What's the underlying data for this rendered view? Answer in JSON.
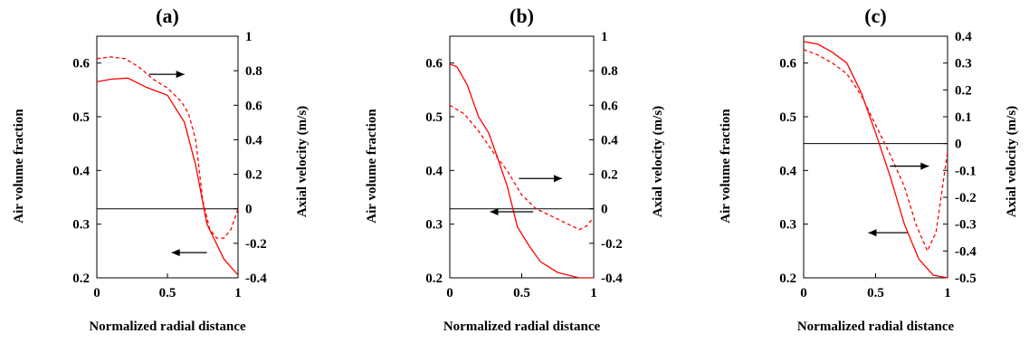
{
  "chart_data": [
    {
      "type": "line",
      "title": "(a)",
      "xlabel": "Normalized radial distance",
      "ylabel_left": "Air volume fraction",
      "ylabel_right": "Axial velocity (m/s)",
      "xlim": [
        0,
        1
      ],
      "ylim_left": [
        0.2,
        0.65
      ],
      "ylim_right": [
        -0.4,
        1
      ],
      "x_ticks": [
        "0",
        "0.5",
        "1"
      ],
      "x_tick_values": [
        0,
        0.5,
        1
      ],
      "y_left_ticks": [
        "0.2",
        "0.3",
        "0.4",
        "0.5",
        "0.6"
      ],
      "y_left_tick_values": [
        0.2,
        0.3,
        0.4,
        0.5,
        0.6
      ],
      "y_right_ticks": [
        "-0.4",
        "-0.2",
        "0",
        "0.2",
        "0.4",
        "0.6",
        "0.8",
        "1"
      ],
      "y_right_tick_values": [
        -0.4,
        -0.2,
        0,
        0.2,
        0.4,
        0.6,
        0.8,
        1
      ],
      "zero_line_right": 0,
      "series": [
        {
          "axis": "left",
          "style": "solid",
          "x": [
            0,
            0.1,
            0.22,
            0.35,
            0.5,
            0.62,
            0.7,
            0.78,
            0.9,
            1.0
          ],
          "y": [
            0.565,
            0.57,
            0.572,
            0.555,
            0.54,
            0.49,
            0.41,
            0.3,
            0.235,
            0.205
          ]
        },
        {
          "axis": "right",
          "style": "dashed",
          "x": [
            0,
            0.1,
            0.2,
            0.3,
            0.4,
            0.5,
            0.6,
            0.65,
            0.7,
            0.75,
            0.8,
            0.85,
            0.9,
            0.95,
            1.0
          ],
          "y": [
            0.87,
            0.88,
            0.87,
            0.82,
            0.75,
            0.7,
            0.62,
            0.55,
            0.4,
            0.05,
            -0.12,
            -0.17,
            -0.17,
            -0.12,
            0.0
          ]
        }
      ],
      "arrows": [
        {
          "points_to": "right",
          "x": [
            0.37,
            0.62
          ],
          "y": 0.579
        },
        {
          "points_to": "left",
          "x": [
            0.78,
            0.53
          ],
          "y": 0.247
        }
      ]
    },
    {
      "type": "line",
      "title": "(b)",
      "xlabel": "Normalized radial distance",
      "ylabel_left": "Air volume fraction",
      "ylabel_right": "Axial velocity (m/s)",
      "xlim": [
        0,
        1
      ],
      "ylim_left": [
        0.2,
        0.65
      ],
      "ylim_right": [
        -0.4,
        1
      ],
      "x_ticks": [
        "0",
        "0.5",
        "1"
      ],
      "x_tick_values": [
        0,
        0.5,
        1
      ],
      "y_left_ticks": [
        "0.2",
        "0.3",
        "0.4",
        "0.5",
        "0.6"
      ],
      "y_left_tick_values": [
        0.2,
        0.3,
        0.4,
        0.5,
        0.6
      ],
      "y_right_ticks": [
        "-0.4",
        "-0.2",
        "0",
        "0.2",
        "0.4",
        "0.6",
        "0.8",
        "1"
      ],
      "y_right_tick_values": [
        -0.4,
        -0.2,
        0,
        0.2,
        0.4,
        0.6,
        0.8,
        1
      ],
      "zero_line_right": 0,
      "series": [
        {
          "axis": "left",
          "style": "solid",
          "x": [
            0,
            0.05,
            0.12,
            0.2,
            0.27,
            0.33,
            0.4,
            0.47,
            0.55,
            0.63,
            0.75,
            0.9,
            1.0
          ],
          "y": [
            0.598,
            0.593,
            0.56,
            0.5,
            0.47,
            0.425,
            0.37,
            0.295,
            0.26,
            0.23,
            0.21,
            0.2,
            0.2
          ]
        },
        {
          "axis": "right",
          "style": "dashed",
          "x": [
            0,
            0.1,
            0.2,
            0.3,
            0.4,
            0.5,
            0.6,
            0.7,
            0.8,
            0.9,
            0.95,
            1.0
          ],
          "y": [
            0.6,
            0.55,
            0.45,
            0.33,
            0.22,
            0.08,
            0.0,
            -0.04,
            -0.08,
            -0.12,
            -0.1,
            -0.05
          ]
        }
      ],
      "arrows": [
        {
          "points_to": "right",
          "x": [
            0.48,
            0.78
          ],
          "y": 0.385
        },
        {
          "points_to": "left",
          "x": [
            0.58,
            0.28
          ],
          "y": 0.323
        }
      ]
    },
    {
      "type": "line",
      "title": "(c)",
      "xlabel": "Normalized radial distance",
      "ylabel_left": "Air volume fraction",
      "ylabel_right": "Axial velocity (m/s)",
      "xlim": [
        0,
        1
      ],
      "ylim_left": [
        0.2,
        0.65
      ],
      "ylim_right": [
        -0.5,
        0.4
      ],
      "x_ticks": [
        "0",
        "0.5",
        "1"
      ],
      "x_tick_values": [
        0,
        0.5,
        1
      ],
      "y_left_ticks": [
        "0.2",
        "0.3",
        "0.4",
        "0.5",
        "0.6"
      ],
      "y_left_tick_values": [
        0.2,
        0.3,
        0.4,
        0.5,
        0.6
      ],
      "y_right_ticks": [
        "-0.5",
        "-0.4",
        "-0.3",
        "-0.2",
        "-0.1",
        "0",
        "0.1",
        "0.2",
        "0.3",
        "0.4"
      ],
      "y_right_tick_values": [
        -0.5,
        -0.4,
        -0.3,
        -0.2,
        -0.1,
        0,
        0.1,
        0.2,
        0.3,
        0.4
      ],
      "zero_line_right": 0,
      "series": [
        {
          "axis": "left",
          "style": "solid",
          "x": [
            0,
            0.1,
            0.2,
            0.3,
            0.4,
            0.5,
            0.6,
            0.7,
            0.8,
            0.9,
            1.0
          ],
          "y": [
            0.64,
            0.635,
            0.62,
            0.6,
            0.545,
            0.47,
            0.39,
            0.3,
            0.235,
            0.205,
            0.2
          ]
        },
        {
          "axis": "right",
          "style": "dashed",
          "x": [
            0,
            0.1,
            0.2,
            0.3,
            0.4,
            0.5,
            0.6,
            0.7,
            0.78,
            0.86,
            0.92,
            1.0
          ],
          "y": [
            0.35,
            0.33,
            0.3,
            0.26,
            0.18,
            0.07,
            -0.04,
            -0.16,
            -0.3,
            -0.4,
            -0.33,
            -0.03
          ]
        }
      ],
      "arrows": [
        {
          "points_to": "right",
          "x": [
            0.6,
            0.87
          ],
          "y": 0.408
        },
        {
          "points_to": "left",
          "x": [
            0.72,
            0.45
          ],
          "y": 0.284
        }
      ]
    }
  ]
}
